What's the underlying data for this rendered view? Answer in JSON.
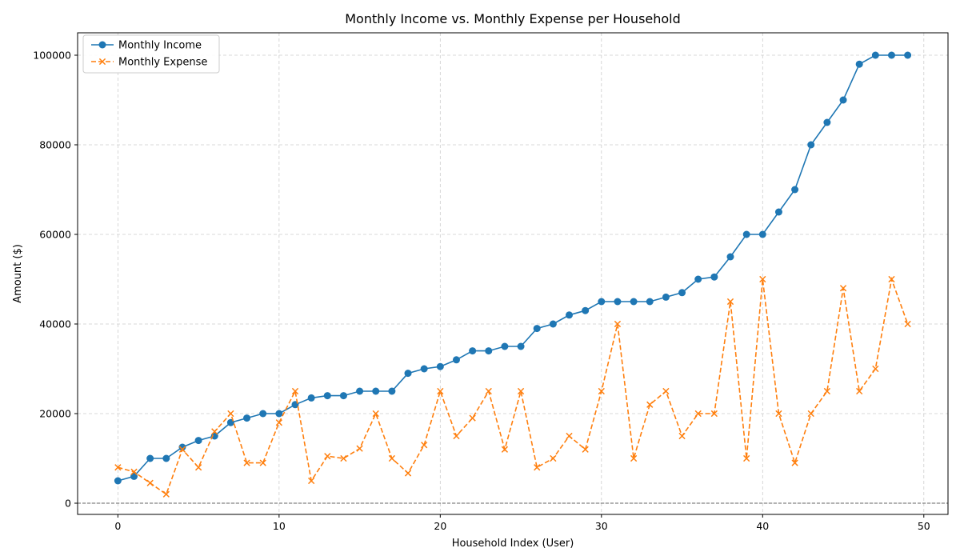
{
  "chart_data": {
    "type": "line",
    "title": "Monthly Income vs. Monthly Expense per Household",
    "xlabel": "Household Index (User)",
    "ylabel": "Amount ($)",
    "xlim": [
      -2.5,
      51.5
    ],
    "ylim": [
      -2500,
      105000
    ],
    "xticks": [
      0,
      10,
      20,
      30,
      40,
      50
    ],
    "yticks": [
      0,
      20000,
      40000,
      60000,
      80000,
      100000
    ],
    "grid": true,
    "legend_position": "top-left",
    "zero_line": true,
    "x": [
      0,
      1,
      2,
      3,
      4,
      5,
      6,
      7,
      8,
      9,
      10,
      11,
      12,
      13,
      14,
      15,
      16,
      17,
      18,
      19,
      20,
      21,
      22,
      23,
      24,
      25,
      26,
      27,
      28,
      29,
      30,
      31,
      32,
      33,
      34,
      35,
      36,
      37,
      38,
      39,
      40,
      41,
      42,
      43,
      44,
      45,
      46,
      47,
      48,
      49
    ],
    "series": [
      {
        "name": "Monthly Income",
        "color": "#1f77b4",
        "marker": "circle",
        "line_style": "solid",
        "values": [
          5000,
          6000,
          10000,
          10000,
          12500,
          14000,
          15000,
          18000,
          19000,
          20000,
          20000,
          22000,
          23500,
          24000,
          24000,
          25000,
          25000,
          25000,
          29000,
          30000,
          30500,
          32000,
          34000,
          34000,
          35000,
          35000,
          39000,
          40000,
          42000,
          43000,
          45000,
          45000,
          45000,
          45000,
          46000,
          47000,
          50000,
          50500,
          55000,
          60000,
          60000,
          65000,
          70000,
          80000,
          85000,
          90000,
          98000,
          100000,
          100000,
          100000
        ]
      },
      {
        "name": "Monthly Expense",
        "color": "#ff7f0e",
        "marker": "x",
        "line_style": "dashed",
        "values": [
          8000,
          7000,
          4500,
          2000,
          12000,
          8000,
          16000,
          20000,
          9000,
          9000,
          18000,
          25000,
          5000,
          10500,
          10000,
          12200,
          20000,
          10000,
          6700,
          13000,
          25000,
          15000,
          19000,
          25000,
          12000,
          25000,
          8000,
          10000,
          15000,
          12000,
          25000,
          40000,
          10000,
          22000,
          25000,
          15000,
          20000,
          20000,
          45000,
          10000,
          50000,
          20000,
          9000,
          20000,
          25000,
          48000,
          25000,
          30000,
          50000,
          40000
        ]
      }
    ]
  }
}
